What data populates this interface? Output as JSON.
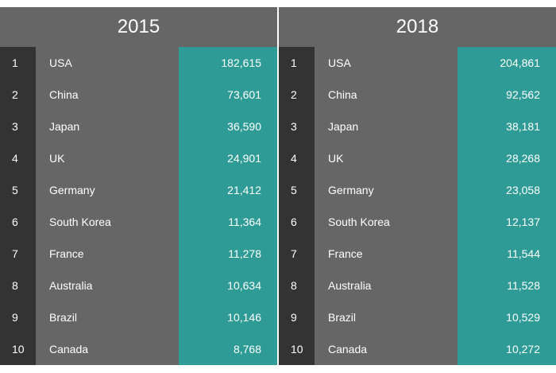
{
  "chart_data": {
    "type": "table",
    "tables": [
      {
        "year": "2015",
        "rows": [
          {
            "rank": "1",
            "country": "USA",
            "value": "182,615"
          },
          {
            "rank": "2",
            "country": "China",
            "value": "73,601"
          },
          {
            "rank": "3",
            "country": "Japan",
            "value": "36,590"
          },
          {
            "rank": "4",
            "country": "UK",
            "value": "24,901"
          },
          {
            "rank": "5",
            "country": "Germany",
            "value": "21,412"
          },
          {
            "rank": "6",
            "country": "South Korea",
            "value": "11,364"
          },
          {
            "rank": "7",
            "country": "France",
            "value": "11,278"
          },
          {
            "rank": "8",
            "country": "Australia",
            "value": "10,634"
          },
          {
            "rank": "9",
            "country": "Brazil",
            "value": "10,146"
          },
          {
            "rank": "10",
            "country": "Canada",
            "value": "8,768"
          }
        ]
      },
      {
        "year": "2018",
        "rows": [
          {
            "rank": "1",
            "country": "USA",
            "value": "204,861"
          },
          {
            "rank": "2",
            "country": "China",
            "value": "92,562"
          },
          {
            "rank": "3",
            "country": "Japan",
            "value": "38,181"
          },
          {
            "rank": "4",
            "country": "UK",
            "value": "28,268"
          },
          {
            "rank": "5",
            "country": "Germany",
            "value": "23,058"
          },
          {
            "rank": "6",
            "country": "South Korea",
            "value": "12,137"
          },
          {
            "rank": "7",
            "country": "France",
            "value": "11,544"
          },
          {
            "rank": "8",
            "country": "Australia",
            "value": "11,528"
          },
          {
            "rank": "9",
            "country": "Brazil",
            "value": "10,529"
          },
          {
            "rank": "10",
            "country": "Canada",
            "value": "10,272"
          }
        ]
      }
    ],
    "colors": {
      "header_bg": "#666666",
      "rank_bg": "#333333",
      "country_bg": "#666666",
      "value_bg": "#2f9b96",
      "text": "#ffffff"
    }
  }
}
